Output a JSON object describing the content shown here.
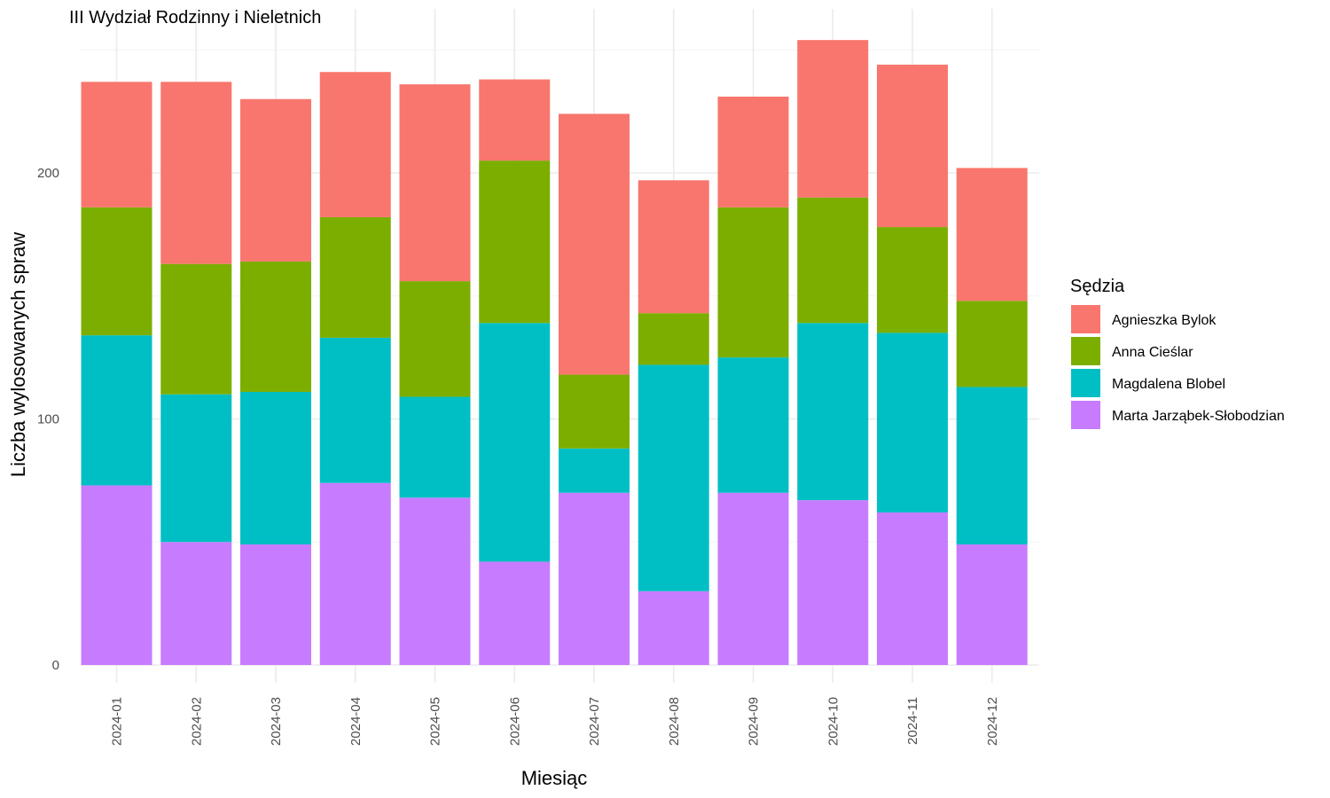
{
  "chart_data": {
    "type": "bar",
    "stacked": true,
    "title": "III Wydział Rodzinny i Nieletnich",
    "xlabel": "Miesiąc",
    "ylabel": "Liczba wylosowanych spraw",
    "ylim": [
      0,
      255
    ],
    "yticks": [
      0,
      100,
      200
    ],
    "grid": true,
    "legend": {
      "title": "Sędzia",
      "position": "right"
    },
    "categories": [
      "2024-01",
      "2024-02",
      "2024-03",
      "2024-04",
      "2024-05",
      "2024-06",
      "2024-07",
      "2024-08",
      "2024-09",
      "2024-10",
      "2024-11",
      "2024-12"
    ],
    "series": [
      {
        "name": "Agnieszka Bylok",
        "color": "#F8766D",
        "values": [
          51,
          74,
          66,
          59,
          80,
          33,
          106,
          54,
          45,
          64,
          66,
          54
        ]
      },
      {
        "name": "Anna Cieślar",
        "color": "#7CAE00",
        "values": [
          52,
          53,
          53,
          49,
          47,
          66,
          30,
          21,
          61,
          51,
          43,
          35
        ]
      },
      {
        "name": "Magdalena Blobel",
        "color": "#00BFC4",
        "values": [
          61,
          60,
          62,
          59,
          41,
          97,
          18,
          92,
          55,
          72,
          73,
          64
        ]
      },
      {
        "name": "Marta Jarząbek-Słobodzian",
        "color": "#C77CFF",
        "values": [
          73,
          50,
          49,
          74,
          68,
          42,
          70,
          30,
          70,
          67,
          62,
          49
        ]
      }
    ]
  }
}
